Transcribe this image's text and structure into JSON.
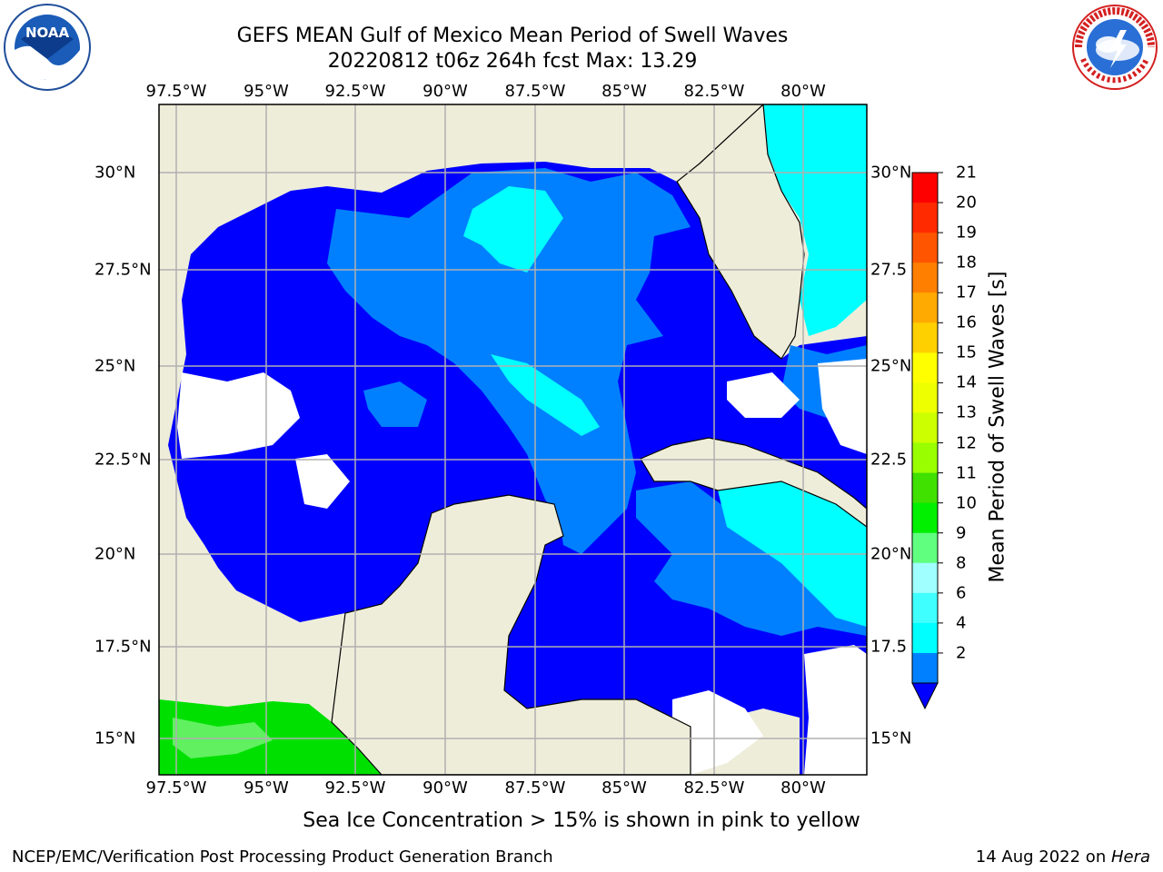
{
  "header": {
    "title_line1": "GEFS MEAN Gulf of Mexico Mean Period of Swell Waves",
    "title_line2": "20220812 t06z 264h fcst   Max: 13.29"
  },
  "map": {
    "lon_labels": [
      "97.5°W",
      "95°W",
      "92.5°W",
      "90°W",
      "87.5°W",
      "85°W",
      "82.5°W",
      "80°W"
    ],
    "lat_labels_left": [
      "30°N",
      "27.5°N",
      "25°N",
      "22.5°N",
      "20°N",
      "17.5°N",
      "15°N"
    ],
    "lat_labels_right": [
      "30°N",
      "27.5",
      "25°N",
      "22.5",
      "20°N",
      "17.5",
      "15°N"
    ],
    "colors": {
      "land": "#eeedda",
      "deep_blue": "#0000ff",
      "mid_blue": "#0080ff",
      "cyan": "#00ffff",
      "light_cyan": "#40ffff",
      "green": "#00e000",
      "light_green": "#60f060",
      "grid": "#b0b0b0"
    }
  },
  "colorbar": {
    "title": "Mean Period of Swell Waves [s]",
    "labels": [
      "21",
      "20",
      "19",
      "18",
      "17",
      "16",
      "15",
      "14",
      "13",
      "12",
      "11",
      "10",
      "9",
      "8",
      "6",
      "4",
      "2"
    ],
    "colors": [
      "#ff0000",
      "#ff2a00",
      "#ff5500",
      "#ff8000",
      "#ffaa00",
      "#ffd000",
      "#ffff00",
      "#eeff00",
      "#ccff00",
      "#99ff00",
      "#40e000",
      "#00f000",
      "#60ff80",
      "#a0ffff",
      "#40ffff",
      "#00ffff",
      "#0080ff"
    ],
    "under_color": "#0000ff"
  },
  "subtitle": "Sea Ice Concentration > 15% is shown in pink to yellow",
  "footer": {
    "left": "NCEP/EMC/Verification Post Processing Product Generation Branch",
    "right_prefix": "14 Aug 2022 on ",
    "right_host": "Hera"
  },
  "logos": {
    "left_label": "NOAA",
    "right_label": "NATIONAL WEATHER SERVICE"
  }
}
